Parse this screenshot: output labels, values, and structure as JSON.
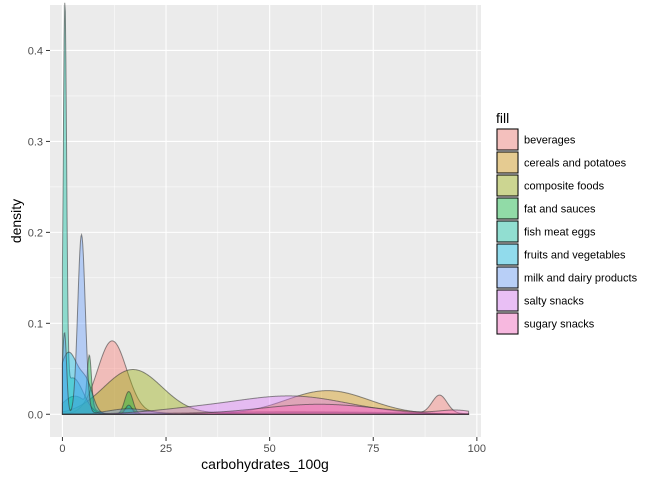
{
  "chart_data": {
    "type": "density",
    "xlabel": "carbohydrates_100g",
    "ylabel": "density",
    "xlim": [
      -3,
      101
    ],
    "ylim": [
      -0.025,
      0.45
    ],
    "x_ticks": [
      0,
      25,
      50,
      75,
      100
    ],
    "y_ticks": [
      0.0,
      0.1,
      0.2,
      0.3,
      0.4
    ],
    "x_tick_labels": [
      "0",
      "25",
      "50",
      "75",
      "100"
    ],
    "y_tick_labels": [
      "0.0",
      "0.1",
      "0.2",
      "0.3",
      "0.4"
    ],
    "legend": {
      "title": "fill",
      "position": "right"
    },
    "grid": true,
    "fill_alpha": 0.4,
    "series": [
      {
        "name": "beverages",
        "color": "#F8766D",
        "x_range": [
          0,
          98
        ],
        "components": [
          {
            "mu": 12,
            "sigma": 3.5,
            "peak": 0.08
          },
          {
            "mu": 91,
            "sigma": 1.8,
            "peak": 0.02
          },
          {
            "mu": 55,
            "sigma": 25,
            "peak": 0.003
          }
        ]
      },
      {
        "name": "cereals and potatoes",
        "color": "#D39200",
        "x_range": [
          0,
          98
        ],
        "components": [
          {
            "mu": 64,
            "sigma": 10,
            "peak": 0.026
          },
          {
            "mu": 16,
            "sigma": 1.2,
            "peak": 0.008
          }
        ]
      },
      {
        "name": "composite foods",
        "color": "#93AA00",
        "x_range": [
          0,
          98
        ],
        "components": [
          {
            "mu": 17,
            "sigma": 7,
            "peak": 0.049
          },
          {
            "mu": 60,
            "sigma": 20,
            "peak": 0.002
          }
        ]
      },
      {
        "name": "fat and sauces",
        "color": "#00BA38",
        "x_range": [
          0,
          98
        ],
        "components": [
          {
            "mu": 6.5,
            "sigma": 0.5,
            "peak": 0.055
          },
          {
            "mu": 3,
            "sigma": 3,
            "peak": 0.02
          },
          {
            "mu": 16,
            "sigma": 1,
            "peak": 0.025
          }
        ]
      },
      {
        "name": "fish meat eggs",
        "color": "#00C19F",
        "x_range": [
          0,
          98
        ],
        "components": [
          {
            "mu": 0.6,
            "sigma": 0.4,
            "peak": 0.425
          },
          {
            "mu": 2.5,
            "sigma": 2.5,
            "peak": 0.04
          }
        ]
      },
      {
        "name": "fruits and vegetables",
        "color": "#00B9E3",
        "x_range": [
          0,
          98
        ],
        "components": [
          {
            "mu": 1.5,
            "sigma": 2.5,
            "peak": 0.068
          },
          {
            "mu": 6,
            "sigma": 1.5,
            "peak": 0.025
          },
          {
            "mu": 16,
            "sigma": 0.8,
            "peak": 0.01
          }
        ]
      },
      {
        "name": "milk and dairy products",
        "color": "#619CFF",
        "x_range": [
          0,
          98
        ],
        "components": [
          {
            "mu": 4.6,
            "sigma": 0.9,
            "peak": 0.197
          },
          {
            "mu": 0.5,
            "sigma": 0.5,
            "peak": 0.09
          },
          {
            "mu": 16,
            "sigma": 5,
            "peak": 0.006
          }
        ]
      },
      {
        "name": "salty snacks",
        "color": "#DB72FB",
        "x_range": [
          0,
          98
        ],
        "components": [
          {
            "mu": 55,
            "sigma": 14,
            "peak": 0.02
          },
          {
            "mu": 30,
            "sigma": 10,
            "peak": 0.004
          }
        ]
      },
      {
        "name": "sugary snacks",
        "color": "#FF61C3",
        "x_range": [
          0,
          98
        ],
        "components": [
          {
            "mu": 62,
            "sigma": 14,
            "peak": 0.011
          },
          {
            "mu": 95,
            "sigma": 4,
            "peak": 0.004
          }
        ]
      }
    ]
  }
}
